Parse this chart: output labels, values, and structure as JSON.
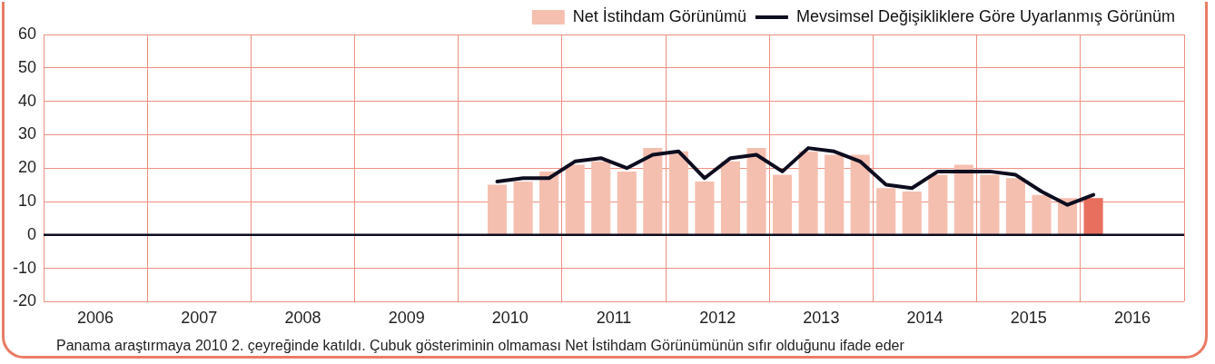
{
  "chart_data": {
    "type": "bar",
    "annotations": [
      "Panama araştırmaya 2010 2. çeyreğinde katıldı.  Çubuk gösteriminin olmaması Net İstihdam Görünümünün sıfır olduğunu ifade eder"
    ],
    "series": [
      {
        "name": "Net İstihdam Görünümü",
        "color": "#f5bfb0",
        "colors": [
          "#f5bfb0",
          "#f5bfb0",
          "#f5bfb0",
          "#f5bfb0",
          "#f5bfb0",
          "#f5bfb0",
          "#f5bfb0",
          "#f5bfb0",
          "#f5bfb0",
          "#f5bfb0",
          "#f5bfb0",
          "#f5bfb0",
          "#f5bfb0",
          "#f5bfb0",
          "#f5bfb0",
          "#f5bfb0",
          "#f5bfb0",
          "#f5bfb0",
          "#f5bfb0",
          "#f5bfb0",
          "#f5bfb0",
          "#f5bfb0",
          "#f5bfb0",
          "#e86f5e"
        ],
        "x": [
          2010.375,
          2010.625,
          2010.875,
          2011.125,
          2011.375,
          2011.625,
          2011.875,
          2012.125,
          2012.375,
          2012.625,
          2012.875,
          2013.125,
          2013.375,
          2013.625,
          2013.875,
          2014.125,
          2014.375,
          2014.625,
          2014.875,
          2015.125,
          2015.375,
          2015.625,
          2015.875,
          2016.125
        ],
        "values": [
          15,
          16,
          19,
          21,
          22,
          19,
          26,
          25,
          16,
          22,
          26,
          18,
          25,
          24,
          24,
          14,
          13,
          18,
          21,
          18,
          17,
          12,
          11,
          11
        ]
      },
      {
        "name": "Mevsimsel Değişikliklere Göre Uyarlanmış Görünüm",
        "type": "line",
        "color": "#0d0d1f",
        "x": [
          2010.375,
          2010.625,
          2010.875,
          2011.125,
          2011.375,
          2011.625,
          2011.875,
          2012.125,
          2012.375,
          2012.625,
          2012.875,
          2013.125,
          2013.375,
          2013.625,
          2013.875,
          2014.125,
          2014.375,
          2014.625,
          2014.875,
          2015.125,
          2015.375,
          2015.625,
          2015.875,
          2016.125
        ],
        "values": [
          16,
          17,
          17,
          22,
          23,
          20,
          24,
          25,
          17,
          23,
          24,
          19,
          26,
          25,
          22,
          15,
          14,
          19,
          19,
          19,
          18,
          13,
          9,
          12
        ]
      }
    ],
    "xlim": [
      2006,
      2017
    ],
    "xticks": [
      {
        "value": 2006,
        "label": null
      },
      {
        "value": 2006.5,
        "label": "2006"
      },
      {
        "value": 2007,
        "label": null
      },
      {
        "value": 2007.5,
        "label": "2007"
      },
      {
        "value": 2008,
        "label": null
      },
      {
        "value": 2008.5,
        "label": "2008"
      },
      {
        "value": 2009,
        "label": null
      },
      {
        "value": 2009.5,
        "label": "2009"
      },
      {
        "value": 2010,
        "label": null
      },
      {
        "value": 2010.5,
        "label": "2010"
      },
      {
        "value": 2011,
        "label": null
      },
      {
        "value": 2011.5,
        "label": "2011"
      },
      {
        "value": 2012,
        "label": null
      },
      {
        "value": 2012.5,
        "label": "2012"
      },
      {
        "value": 2013,
        "label": null
      },
      {
        "value": 2013.5,
        "label": "2013"
      },
      {
        "value": 2014,
        "label": null
      },
      {
        "value": 2014.5,
        "label": "2014"
      },
      {
        "value": 2015,
        "label": null
      },
      {
        "value": 2015.5,
        "label": "2015"
      },
      {
        "value": 2016,
        "label": null
      },
      {
        "value": 2016.5,
        "label": "2016"
      },
      {
        "value": 2017,
        "label": null
      }
    ],
    "ylim": [
      -20,
      60
    ],
    "yticks": [
      -20,
      -10,
      0,
      10,
      20,
      30,
      40,
      50,
      60
    ],
    "ref_lines": [
      {
        "axis": "y",
        "value": 0,
        "color": "#0d0d1f"
      }
    ],
    "grid": true,
    "legend": "top right",
    "line_style": "solid",
    "marker": "none"
  }
}
